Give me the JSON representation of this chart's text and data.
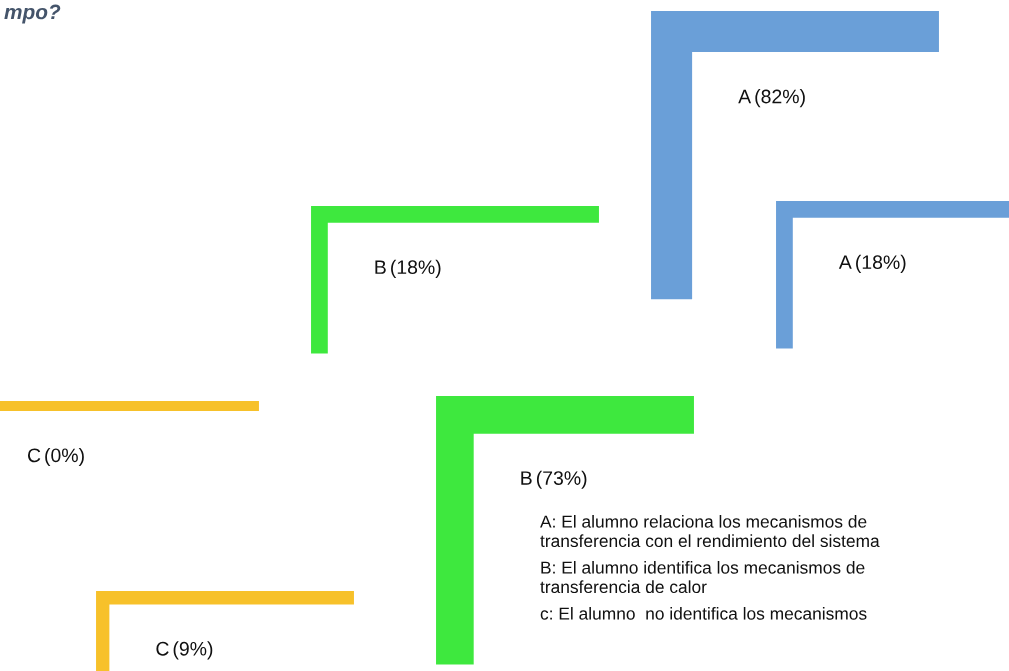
{
  "chart_data": {
    "type": "other",
    "title": "mpo?",
    "categories": [
      "A",
      "B",
      "C"
    ],
    "colors": [
      "#6a9fd8",
      "#3ee83e",
      "#f7c12a"
    ],
    "series": [
      {
        "values": [
          82,
          18,
          0
        ],
        "value_labels": [
          "(82%)",
          "(18%)",
          "(0%)"
        ]
      },
      {
        "values": [
          18,
          73,
          9
        ],
        "value_labels": [
          "(18%)",
          "(73%)",
          "(9%)"
        ]
      }
    ],
    "annotations": [
      "A: El alumno relaciona los mecanismos de\ntransferencia con el rendimiento del sistema",
      "B: El alumno identifica los mecanismos de\ntransferencia de calor",
      "c: El alumno  no identifica los mecanismos"
    ]
  }
}
